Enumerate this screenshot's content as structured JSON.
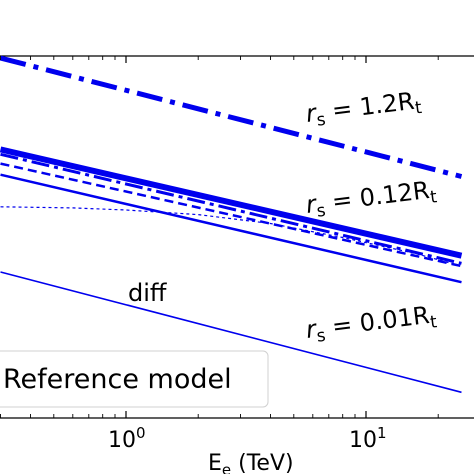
{
  "chart_data": {
    "type": "line",
    "xlabel": "E_e (TeV)",
    "xlabel_main": "E",
    "xlabel_sub": "e",
    "xlabel_rest": " (TeV)",
    "xscale": "log",
    "xlim": [
      0.3,
      25
    ],
    "yscale": "log",
    "ylim": [
      1,
      1000
    ],
    "grid": false,
    "x_ticks": [
      {
        "value": 1,
        "base": "10",
        "exp": "0"
      },
      {
        "value": 10,
        "base": "10",
        "exp": "1"
      }
    ],
    "legend": {
      "placement": "lower-left",
      "entries": [
        "Reference model"
      ]
    },
    "annotations": [
      {
        "id": "rs12",
        "label": "r_s = 1.2R_t",
        "parts": {
          "r": "r",
          "s": "s",
          "eq": " = 1.2R",
          "t": "t"
        },
        "x": 3.2,
        "y": 270
      },
      {
        "id": "rs012",
        "label": "r_s = 0.12R_t",
        "parts": {
          "r": "r",
          "s": "s",
          "eq": " = 0.12R",
          "t": "t"
        },
        "x": 3.2,
        "y": 44
      },
      {
        "id": "diff",
        "label": "diff",
        "x": 0.62,
        "y": 13
      },
      {
        "id": "rs001",
        "label": "r_s = 0.01R_t",
        "parts": {
          "r": "r",
          "s": "s",
          "eq": " = 0.01R",
          "t": "t"
        },
        "x": 3.2,
        "y": 7
      }
    ],
    "series": [
      {
        "style": "dashdot-thick",
        "color": "#0000ee",
        "width": 5,
        "points": [
          [
            0.3,
            700
          ],
          [
            25,
            95
          ]
        ]
      },
      {
        "style": "solid-thick",
        "color": "#0000ee",
        "width": 6,
        "points": [
          [
            0.3,
            150
          ],
          [
            25,
            25
          ]
        ]
      },
      {
        "style": "dashdot",
        "color": "#0000ee",
        "width": 3,
        "points": [
          [
            0.3,
            138
          ],
          [
            25,
            22
          ]
        ]
      },
      {
        "style": "dashed",
        "color": "#0000ee",
        "width": 2.5,
        "points": [
          [
            0.3,
            118
          ],
          [
            25,
            21
          ]
        ]
      },
      {
        "style": "solid",
        "color": "#0000ee",
        "width": 2.5,
        "points": [
          [
            0.3,
            98
          ],
          [
            25,
            16
          ]
        ]
      },
      {
        "style": "dotted",
        "color": "#0000ee",
        "width": 1.2,
        "points": [
          [
            0.3,
            57
          ],
          [
            0.6,
            56
          ],
          [
            1,
            54
          ],
          [
            2,
            50
          ],
          [
            4,
            43
          ],
          [
            8,
            34
          ],
          [
            16,
            26
          ],
          [
            25,
            21
          ]
        ]
      },
      {
        "style": "thin-solid",
        "color": "#0000ee",
        "width": 1.6,
        "points": [
          [
            0.3,
            19
          ],
          [
            25,
            2.5
          ]
        ]
      }
    ]
  }
}
